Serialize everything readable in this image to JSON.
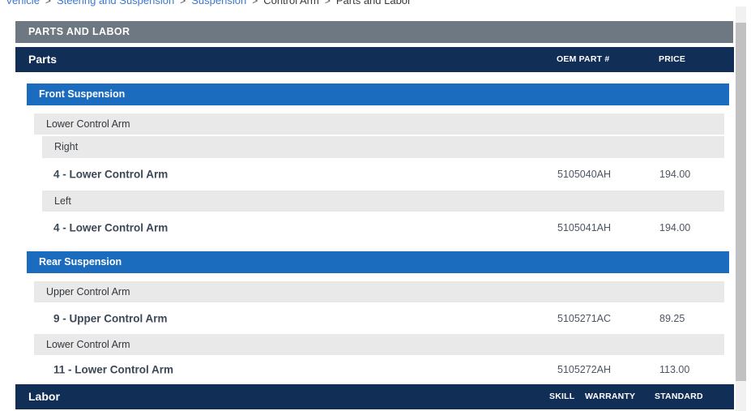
{
  "breadcrumb": {
    "separator": ">",
    "items": [
      {
        "label": "Vehicle"
      },
      {
        "label": "Steering and Suspension"
      },
      {
        "label": "Suspension"
      },
      {
        "label": "Control Arm"
      },
      {
        "label": "Parts and Labor"
      }
    ]
  },
  "page_banner": {
    "title": "PARTS AND LABOR"
  },
  "parts": {
    "header": {
      "title": "Parts",
      "col_oem": "OEM PART #",
      "col_price": "PRICE"
    },
    "front": {
      "title": "Front Suspension",
      "group": "Lower Control Arm",
      "right_label": "Right",
      "right_item": {
        "name": "4 - Lower Control Arm",
        "oem": "5105040AH",
        "price": "194.00"
      },
      "left_label": "Left",
      "left_item": {
        "name": "4 - Lower Control Arm",
        "oem": "5105041AH",
        "price": "194.00"
      }
    },
    "rear": {
      "title": "Rear Suspension",
      "upper_group": "Upper Control Arm",
      "upper_item": {
        "name": "9 - Upper Control Arm",
        "oem": "5105271AC",
        "price": "89.25"
      },
      "lower_group": "Lower Control Arm",
      "lower_item": {
        "name": "11 - Lower Control Arm",
        "oem": "5105272AH",
        "price": "113.00"
      }
    }
  },
  "labor": {
    "header": {
      "title": "Labor",
      "col_skill": "SKILL",
      "col_warranty": "WARRANTY",
      "col_standard": "STANDARD"
    }
  },
  "colors": {
    "navy": "#112e57",
    "section_blue": "#1b6cbe",
    "banner_gray": "#6e7882",
    "row_gray": "#e9e9ea",
    "link_blue": "#3d77cf"
  }
}
